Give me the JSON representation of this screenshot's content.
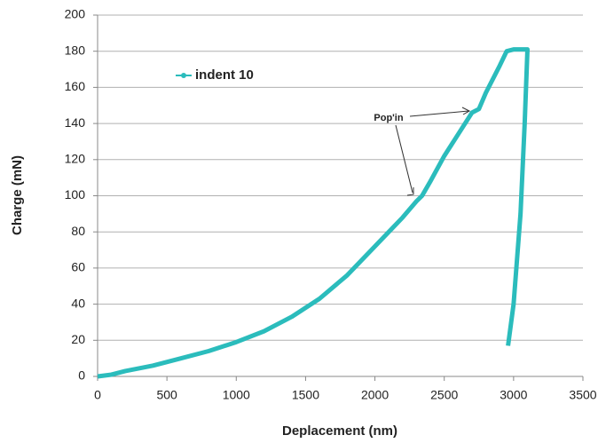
{
  "chart_data": {
    "type": "line",
    "x_label": "Deplacement (nm)",
    "y_label": "Charge (mN)",
    "annotation": "Pop'in",
    "xlim": [
      0,
      3500
    ],
    "xticks": [
      0,
      500,
      1000,
      1500,
      2000,
      2500,
      3000,
      3500
    ],
    "ylim": [
      0,
      200
    ],
    "yticks": [
      0,
      20,
      40,
      60,
      80,
      100,
      120,
      140,
      160,
      180,
      200
    ],
    "grid": true,
    "legend": "upper left",
    "series": [
      {
        "name": "indent 10",
        "color": "#2bbcbc",
        "x": [
          0,
          100,
          200,
          400,
          600,
          800,
          1000,
          1200,
          1400,
          1600,
          1800,
          2000,
          2200,
          2300,
          2340,
          2400,
          2500,
          2600,
          2700,
          2750,
          2800,
          2900,
          2950,
          3000,
          3080,
          3100,
          3080,
          3050,
          3000,
          2960
        ],
        "values": [
          0,
          1,
          3,
          6,
          10,
          14,
          19,
          25,
          33,
          43,
          56,
          72,
          88,
          97,
          100,
          108,
          122,
          134,
          146,
          148,
          157,
          172,
          180,
          181,
          181,
          181,
          140,
          90,
          40,
          17
        ]
      }
    ]
  }
}
